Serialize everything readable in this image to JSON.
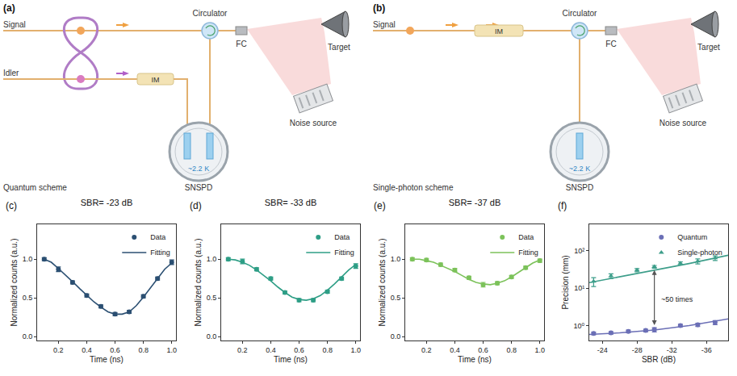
{
  "diagrams": [
    {
      "label": "(a)",
      "caption": "Quantum scheme",
      "texts": {
        "signal": "Signal",
        "idler": "Idler",
        "modulator": "IM",
        "circulator": "Circulator",
        "coupler": "FC",
        "target": "Target",
        "noise": "Noise source",
        "detector": "SNSPD",
        "temperature": "~2.2 K"
      }
    },
    {
      "label": "(b)",
      "caption": "Single-photon scheme",
      "texts": {
        "signal": "Signal",
        "modulator": "IM",
        "circulator": "Circulator",
        "coupler": "FC",
        "target": "Target",
        "noise": "Noise source",
        "detector": "SNSPD",
        "temperature": "~2.2 K"
      }
    }
  ],
  "chart_data": [
    {
      "type": "scatter",
      "panel": "(c)",
      "title": "SBR= -23 dB",
      "x_label": "Time (ns)",
      "y_label": "Normalized counts (a.u.)",
      "xlim": [
        0.05,
        1.03
      ],
      "xticks": [
        0.2,
        0.4,
        0.6,
        0.8,
        {
          "value": 1,
          "label": "1.0"
        }
      ],
      "ylim": [
        -0.05,
        1.45
      ],
      "yticks": [
        {
          "value": 0,
          "label": "0.0"
        },
        0.5,
        {
          "value": 1,
          "label": "1.0"
        }
      ],
      "legend": "top right",
      "grid": false,
      "series": [
        {
          "name": "Data",
          "type": "scatter",
          "marker": "circle",
          "color": "#2b4f72",
          "x": [
            0.1,
            0.2,
            0.3,
            0.4,
            0.5,
            0.6,
            0.7,
            0.8,
            0.9,
            1.0
          ],
          "values": [
            1.0,
            0.87,
            0.7,
            0.53,
            0.39,
            0.29,
            0.32,
            0.52,
            0.75,
            0.96
          ],
          "errors": [
            0.02,
            0.03,
            0.02,
            0.02,
            0.02,
            0.02,
            0.02,
            0.02,
            0.02,
            0.03
          ]
        },
        {
          "name": "Fitting",
          "type": "line",
          "line_style": "solid",
          "color": "#2b4f72",
          "x": [
            0.1,
            0.15,
            0.2,
            0.25,
            0.3,
            0.35,
            0.4,
            0.45,
            0.5,
            0.55,
            0.6,
            0.65,
            0.7,
            0.75,
            0.8,
            0.85,
            0.9,
            0.95,
            1.0
          ],
          "values": [
            1.0,
            0.96,
            0.88,
            0.8,
            0.71,
            0.62,
            0.53,
            0.45,
            0.38,
            0.32,
            0.29,
            0.29,
            0.32,
            0.4,
            0.51,
            0.63,
            0.76,
            0.87,
            0.95
          ]
        }
      ]
    },
    {
      "type": "scatter",
      "panel": "(d)",
      "title": "SBR= -33 dB",
      "x_label": "Time (ns)",
      "y_label": "Normalized counts (a.u.)",
      "xlim": [
        0.05,
        1.03
      ],
      "xticks": [
        0.2,
        0.4,
        0.6,
        0.8,
        {
          "value": 1,
          "label": "1.0"
        }
      ],
      "ylim": [
        -0.05,
        1.45
      ],
      "yticks": [
        {
          "value": 0,
          "label": "0.0"
        },
        0.5,
        {
          "value": 1,
          "label": "1.0"
        }
      ],
      "legend": "top right",
      "grid": false,
      "series": [
        {
          "name": "Data",
          "type": "scatter",
          "marker": "circle",
          "color": "#2e9e86",
          "x": [
            0.1,
            0.2,
            0.3,
            0.4,
            0.5,
            0.6,
            0.7,
            0.8,
            0.9,
            1.0
          ],
          "values": [
            1.0,
            0.97,
            0.87,
            0.75,
            0.57,
            0.47,
            0.47,
            0.58,
            0.75,
            0.91
          ],
          "errors": [
            0.02,
            0.03,
            0.02,
            0.02,
            0.02,
            0.02,
            0.02,
            0.02,
            0.02,
            0.03
          ]
        },
        {
          "name": "Fitting",
          "type": "line",
          "line_style": "solid",
          "color": "#2e9e86",
          "x": [
            0.1,
            0.15,
            0.2,
            0.25,
            0.3,
            0.35,
            0.4,
            0.45,
            0.5,
            0.55,
            0.6,
            0.65,
            0.7,
            0.75,
            0.8,
            0.85,
            0.9,
            0.95,
            1.0
          ],
          "values": [
            1.0,
            0.99,
            0.96,
            0.92,
            0.86,
            0.79,
            0.72,
            0.64,
            0.57,
            0.51,
            0.48,
            0.47,
            0.49,
            0.53,
            0.6,
            0.68,
            0.77,
            0.86,
            0.93
          ]
        }
      ]
    },
    {
      "type": "scatter",
      "panel": "(e)",
      "title": "SBR= -37 dB",
      "x_label": "Time (ns)",
      "y_label": "Normalized counts (a.u.)",
      "xlim": [
        0.05,
        1.03
      ],
      "xticks": [
        0.2,
        0.4,
        0.6,
        0.8,
        {
          "value": 1,
          "label": "1.0"
        }
      ],
      "ylim": [
        -0.05,
        1.45
      ],
      "yticks": [
        {
          "value": 0,
          "label": "0.0"
        },
        0.5,
        {
          "value": 1,
          "label": "1.0"
        }
      ],
      "legend": "top right",
      "grid": false,
      "series": [
        {
          "name": "Data",
          "type": "scatter",
          "marker": "circle",
          "color": "#7cc25a",
          "x": [
            0.1,
            0.2,
            0.3,
            0.4,
            0.5,
            0.6,
            0.7,
            0.8,
            0.9,
            1.0
          ],
          "values": [
            1.0,
            0.99,
            0.93,
            0.86,
            0.76,
            0.67,
            0.69,
            0.77,
            0.89,
            0.98
          ],
          "errors": [
            0.02,
            0.02,
            0.02,
            0.02,
            0.02,
            0.03,
            0.02,
            0.02,
            0.02,
            0.02
          ]
        },
        {
          "name": "Fitting",
          "type": "line",
          "line_style": "solid",
          "color": "#7cc25a",
          "x": [
            0.1,
            0.15,
            0.2,
            0.25,
            0.3,
            0.35,
            0.4,
            0.45,
            0.5,
            0.55,
            0.6,
            0.65,
            0.7,
            0.75,
            0.8,
            0.85,
            0.9,
            0.95,
            1.0
          ],
          "values": [
            1.0,
            1.0,
            0.98,
            0.96,
            0.92,
            0.88,
            0.84,
            0.79,
            0.74,
            0.7,
            0.68,
            0.67,
            0.69,
            0.72,
            0.77,
            0.83,
            0.89,
            0.95,
            0.99
          ]
        }
      ]
    },
    {
      "type": "scatter",
      "panel": "(f)",
      "x_label": "SBR (dB)",
      "y_label": "Precision (mm)",
      "log": "y",
      "xlim": [
        -22.5,
        -38.5
      ],
      "xticks": [
        -24,
        -28,
        -32,
        -36
      ],
      "ylim": [
        0.4,
        500
      ],
      "yticks": [
        {
          "value": 1,
          "label": "10⁰"
        },
        {
          "value": 10,
          "label": "10¹"
        },
        {
          "value": 100,
          "label": "10²"
        }
      ],
      "legend": "top right",
      "grid": false,
      "series": [
        {
          "name": "Quantum",
          "type": "scatter",
          "marker": "circle",
          "color": "#6b6fb6",
          "x": [
            -23,
            -25,
            -27,
            -29,
            -30,
            -33,
            -35,
            -37
          ],
          "values": [
            0.62,
            0.64,
            0.7,
            0.74,
            0.78,
            1.0,
            1.05,
            1.2
          ],
          "errors": [
            0.05,
            0.05,
            0.06,
            0.06,
            0.1,
            0.08,
            0.1,
            0.15
          ],
          "fit_x": [
            -22.5,
            -26,
            -30,
            -34,
            -38.5
          ],
          "fit_values": [
            0.58,
            0.64,
            0.76,
            1.0,
            1.5
          ]
        },
        {
          "name": "Single-photon",
          "type": "scatter",
          "marker": "triangle-up",
          "color": "#3d9e8a",
          "x": [
            -23,
            -25,
            -28,
            -30,
            -33,
            -35,
            -37
          ],
          "values": [
            15,
            21,
            30,
            37,
            46,
            52,
            63
          ],
          "errors": [
            4,
            3,
            3,
            3,
            4,
            8,
            9
          ],
          "fit_x": [
            -22.5,
            -26,
            -30,
            -34,
            -38.5
          ],
          "fit_values": [
            14,
            20,
            30,
            45,
            75
          ]
        }
      ],
      "annotations": [
        {
          "text": "~50 times",
          "x": -30.6,
          "y": 5
        }
      ],
      "arrow": {
        "x": -30,
        "from": 0.95,
        "to": 30
      }
    }
  ]
}
